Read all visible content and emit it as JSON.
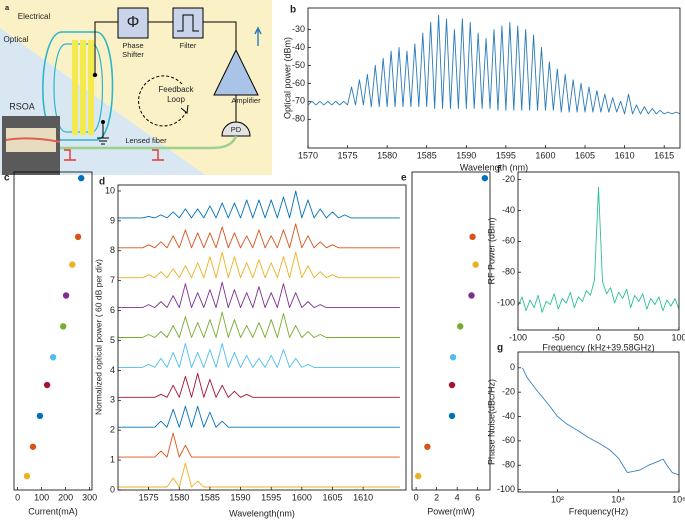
{
  "diagram": {
    "label": "a",
    "electrical": "Electrical",
    "optical": "Optical",
    "phase_symbol": "Φ",
    "phase_shifter": [
      "Phase",
      "Shifter"
    ],
    "filter": "Filter",
    "amplifier": "Amplifier",
    "pd": "PD",
    "feedback_loop": [
      "Feedback",
      "Loop"
    ],
    "rsoa": "RSOA",
    "lensed_fiber": "Lensed fiber"
  },
  "chart_data": [
    {
      "label": "b",
      "type": "line",
      "xlabel": "Wavelength (nm)",
      "ylabel": "Optical power (dBm)",
      "color": "#2a7ab9",
      "xlim": [
        1570,
        1617
      ],
      "ylim": [
        -96,
        -18
      ],
      "xticks": [
        1570,
        1575,
        1580,
        1585,
        1590,
        1595,
        1600,
        1605,
        1610,
        1615
      ],
      "yticks": [
        -80,
        -70,
        -60,
        -50,
        -40,
        -30
      ],
      "x": [
        1570,
        1570.5,
        1571,
        1571.5,
        1572,
        1572.5,
        1573,
        1573.5,
        1574,
        1574.5,
        1575,
        1575.5,
        1576,
        1576.5,
        1577,
        1577.5,
        1578,
        1578.5,
        1579,
        1579.5,
        1580,
        1580.5,
        1581,
        1581.5,
        1582,
        1582.5,
        1583,
        1583.5,
        1584,
        1584.5,
        1585,
        1585.5,
        1586,
        1586.5,
        1587,
        1587.5,
        1588,
        1588.5,
        1589,
        1589.5,
        1590,
        1590.5,
        1591,
        1591.5,
        1592,
        1592.5,
        1593,
        1593.5,
        1594,
        1594.5,
        1595,
        1595.5,
        1596,
        1596.5,
        1597,
        1597.5,
        1598,
        1598.5,
        1599,
        1599.5,
        1600,
        1600.5,
        1601,
        1601.5,
        1602,
        1602.5,
        1603,
        1603.5,
        1604,
        1604.5,
        1605,
        1605.5,
        1606,
        1606.5,
        1607,
        1607.5,
        1608,
        1608.5,
        1609,
        1609.5,
        1610,
        1610.5,
        1611,
        1611.5,
        1612,
        1612.5,
        1613,
        1613.5,
        1614,
        1614.5,
        1615,
        1615.5,
        1616,
        1616.5,
        1617
      ],
      "values": [
        -72,
        -70,
        -72,
        -70,
        -72,
        -70,
        -72,
        -70,
        -72,
        -70,
        -72,
        -62,
        -72,
        -58,
        -72,
        -55,
        -73,
        -50,
        -73,
        -46,
        -73,
        -42,
        -73,
        -40,
        -73,
        -42,
        -73,
        -38,
        -73,
        -32,
        -73,
        -26,
        -74,
        -22,
        -74,
        -24,
        -74,
        -30,
        -74,
        -24,
        -74,
        -26,
        -74,
        -32,
        -74,
        -35,
        -74,
        -30,
        -75,
        -28,
        -75,
        -26,
        -75,
        -28,
        -75,
        -30,
        -75,
        -33,
        -75,
        -40,
        -75,
        -48,
        -75,
        -52,
        -76,
        -55,
        -76,
        -58,
        -76,
        -60,
        -76,
        -62,
        -76,
        -64,
        -76,
        -66,
        -76,
        -68,
        -76,
        -70,
        -77,
        -66,
        -77,
        -72,
        -77,
        -73,
        -77,
        -74,
        -77,
        -75,
        -77,
        -76,
        -77,
        -76,
        -77
      ]
    },
    {
      "label": "c",
      "type": "scatter",
      "xlabel": "Current(mA)",
      "xlim": [
        -15,
        310
      ],
      "ylim": [
        0,
        10.3
      ],
      "xticks": [
        0,
        100,
        200,
        300
      ],
      "x": [
        39,
        64,
        93,
        123,
        148,
        190,
        202,
        228,
        252,
        265
      ],
      "y": [
        0.45,
        1.4,
        2.4,
        3.4,
        4.3,
        5.3,
        6.3,
        7.3,
        8.2,
        10.1
      ],
      "colors": [
        "#edb120",
        "#d95319",
        "#0072bd",
        "#a2142f",
        "#4dbeee",
        "#77ac30",
        "#7e2f8e",
        "#edb120",
        "#d95319",
        "#0072bd"
      ]
    },
    {
      "label": "d",
      "type": "line",
      "xlabel": "Wavelength(nm)",
      "ylabel": "Normalized optical power ( 60 dB per div)",
      "xlim": [
        1570,
        1617
      ],
      "ylim": [
        0,
        10.2
      ],
      "xticks": [
        1575,
        1580,
        1585,
        1590,
        1595,
        1600,
        1605,
        1610
      ],
      "yticks": [
        0,
        1,
        2,
        3,
        4,
        5,
        6,
        7,
        8,
        9,
        10
      ],
      "x": [
        1570,
        1571,
        1572,
        1573,
        1574,
        1575,
        1576,
        1577,
        1578,
        1579,
        1580,
        1581,
        1582,
        1583,
        1584,
        1585,
        1586,
        1587,
        1588,
        1589,
        1590,
        1591,
        1592,
        1593,
        1594,
        1595,
        1596,
        1597,
        1598,
        1599,
        1600,
        1601,
        1602,
        1603,
        1604,
        1605,
        1606,
        1607,
        1608,
        1609,
        1610,
        1611,
        1612,
        1613,
        1614,
        1615,
        1616
      ],
      "series": [
        {
          "color": "#edb120",
          "values": [
            0.1,
            0.1,
            0.1,
            0.1,
            0.1,
            0.1,
            0.1,
            0.1,
            0.1,
            0.4,
            0.1,
            0.9,
            0.1,
            0.3,
            0.1,
            0.1,
            0.1,
            0.1,
            0.1,
            0.1,
            0.1,
            0.1,
            0.1,
            0.1,
            0.1,
            0.1,
            0.1,
            0.1,
            0.1,
            0.1,
            0.1,
            0.1,
            0.1,
            0.1,
            0.1,
            0.1,
            0.1,
            0.1,
            0.1,
            0.1,
            0.1,
            0.1,
            0.1,
            0.1,
            0.1,
            0.1,
            0.1
          ]
        },
        {
          "color": "#d95319",
          "values": [
            1.1,
            1.1,
            1.1,
            1.1,
            1.1,
            1.1,
            1.1,
            1.3,
            1.1,
            1.9,
            1.1,
            1.5,
            1.1,
            1.1,
            1.1,
            1.1,
            1.1,
            1.1,
            1.1,
            1.1,
            1.1,
            1.1,
            1.1,
            1.1,
            1.1,
            1.1,
            1.1,
            1.1,
            1.1,
            1.1,
            1.1,
            1.1,
            1.1,
            1.1,
            1.1,
            1.1,
            1.1,
            1.1,
            1.1,
            1.1,
            1.1,
            1.1,
            1.1,
            1.1,
            1.1,
            1.1,
            1.1
          ]
        },
        {
          "color": "#0072bd",
          "values": [
            2.1,
            2.1,
            2.1,
            2.1,
            2.1,
            2.1,
            2.1,
            2.3,
            2.1,
            2.7,
            2.1,
            2.8,
            2.1,
            2.8,
            2.1,
            2.6,
            2.1,
            2.3,
            2.1,
            2.1,
            2.1,
            2.1,
            2.1,
            2.1,
            2.1,
            2.1,
            2.1,
            2.1,
            2.1,
            2.1,
            2.1,
            2.1,
            2.1,
            2.1,
            2.1,
            2.1,
            2.1,
            2.1,
            2.1,
            2.1,
            2.1,
            2.1,
            2.1,
            2.1,
            2.1,
            2.1,
            2.1
          ]
        },
        {
          "color": "#a2142f",
          "values": [
            3.1,
            3.1,
            3.1,
            3.1,
            3.1,
            3.1,
            3.1,
            3.2,
            3.1,
            3.5,
            3.1,
            3.8,
            3.1,
            3.9,
            3.1,
            3.7,
            3.1,
            3.5,
            3.1,
            3.3,
            3.1,
            3.2,
            3.1,
            3.1,
            3.1,
            3.1,
            3.1,
            3.1,
            3.1,
            3.1,
            3.1,
            3.1,
            3.1,
            3.1,
            3.1,
            3.1,
            3.1,
            3.1,
            3.1,
            3.1,
            3.1,
            3.1,
            3.1,
            3.1,
            3.1,
            3.1,
            3.1
          ]
        },
        {
          "color": "#4dbeee",
          "values": [
            4.1,
            4.1,
            4.1,
            4.1,
            4.1,
            4.2,
            4.1,
            4.4,
            4.1,
            4.6,
            4.1,
            4.9,
            4.1,
            4.6,
            4.1,
            4.7,
            4.1,
            4.9,
            4.1,
            4.6,
            4.1,
            4.5,
            4.1,
            4.4,
            4.1,
            4.5,
            4.1,
            4.7,
            4.1,
            4.4,
            4.1,
            4.2,
            4.1,
            4.1,
            4.1,
            4.1,
            4.1,
            4.1,
            4.1,
            4.1,
            4.1,
            4.1,
            4.1,
            4.1,
            4.1,
            4.1,
            4.1
          ]
        },
        {
          "color": "#77ac30",
          "values": [
            5.1,
            5.1,
            5.1,
            5.1,
            5.1,
            5.2,
            5.1,
            5.3,
            5.1,
            5.5,
            5.1,
            5.8,
            5.1,
            5.6,
            5.1,
            5.7,
            5.1,
            5.95,
            5.1,
            5.7,
            5.1,
            5.5,
            5.1,
            5.6,
            5.1,
            5.7,
            5.1,
            5.9,
            5.1,
            5.5,
            5.1,
            5.3,
            5.1,
            5.2,
            5.1,
            5.1,
            5.1,
            5.1,
            5.1,
            5.1,
            5.1,
            5.1,
            5.1,
            5.1,
            5.1,
            5.1,
            5.1
          ]
        },
        {
          "color": "#7e2f8e",
          "values": [
            6.1,
            6.1,
            6.1,
            6.1,
            6.1,
            6.2,
            6.1,
            6.3,
            6.1,
            6.5,
            6.1,
            6.9,
            6.1,
            6.6,
            6.1,
            6.7,
            6.1,
            6.95,
            6.1,
            6.7,
            6.1,
            6.6,
            6.1,
            6.8,
            6.1,
            6.6,
            6.1,
            6.9,
            6.1,
            6.6,
            6.1,
            6.3,
            6.1,
            6.2,
            6.1,
            6.1,
            6.1,
            6.1,
            6.1,
            6.1,
            6.1,
            6.1,
            6.1,
            6.1,
            6.1,
            6.1,
            6.1
          ]
        },
        {
          "color": "#edb120",
          "values": [
            7.1,
            7.1,
            7.1,
            7.1,
            7.1,
            7.2,
            7.1,
            7.3,
            7.1,
            7.4,
            7.1,
            7.5,
            7.1,
            7.6,
            7.1,
            7.8,
            7.1,
            7.95,
            7.1,
            7.8,
            7.1,
            7.6,
            7.1,
            7.7,
            7.1,
            7.6,
            7.1,
            7.8,
            7.1,
            7.95,
            7.1,
            7.5,
            7.1,
            7.3,
            7.1,
            7.2,
            7.1,
            7.1,
            7.1,
            7.1,
            7.1,
            7.1,
            7.1,
            7.1,
            7.1,
            7.1,
            7.1
          ]
        },
        {
          "color": "#d95319",
          "values": [
            8.1,
            8.1,
            8.1,
            8.1,
            8.1,
            8.2,
            8.1,
            8.3,
            8.1,
            8.5,
            8.1,
            8.7,
            8.1,
            8.6,
            8.1,
            8.6,
            8.1,
            8.8,
            8.1,
            8.6,
            8.1,
            8.5,
            8.1,
            8.7,
            8.1,
            8.5,
            8.1,
            8.7,
            8.1,
            8.9,
            8.1,
            8.5,
            8.1,
            8.3,
            8.1,
            8.2,
            8.1,
            8.1,
            8.1,
            8.1,
            8.1,
            8.1,
            8.1,
            8.1,
            8.1,
            8.1,
            8.1
          ]
        },
        {
          "color": "#0072bd",
          "values": [
            9.1,
            9.1,
            9.1,
            9.1,
            9.1,
            9.15,
            9.1,
            9.2,
            9.1,
            9.3,
            9.1,
            9.4,
            9.1,
            9.4,
            9.1,
            9.5,
            9.1,
            9.6,
            9.1,
            9.6,
            9.1,
            9.7,
            9.1,
            9.7,
            9.1,
            9.7,
            9.1,
            9.8,
            9.1,
            10,
            9.1,
            9.7,
            9.1,
            9.4,
            9.1,
            9.3,
            9.1,
            9.2,
            9.1,
            9.1,
            9.1,
            9.1,
            9.1,
            9.1,
            9.1,
            9.1,
            9.1
          ]
        }
      ]
    },
    {
      "label": "e",
      "type": "scatter",
      "xlabel": "Power(mW)",
      "xlim": [
        -0.4,
        7.2
      ],
      "ylim": [
        0,
        10.3
      ],
      "xticks": [
        0,
        2,
        4,
        6
      ],
      "x": [
        0.2,
        1.1,
        3.5,
        3.5,
        3.6,
        4.3,
        5.4,
        5.8,
        5.5,
        6.7
      ],
      "y": [
        0.45,
        1.4,
        2.4,
        3.4,
        4.3,
        5.3,
        6.3,
        7.3,
        8.2,
        10.1
      ],
      "colors": [
        "#edb120",
        "#d95319",
        "#0072bd",
        "#a2142f",
        "#4dbeee",
        "#77ac30",
        "#7e2f8e",
        "#edb120",
        "#d95319",
        "#0072bd"
      ]
    },
    {
      "label": "f",
      "type": "line",
      "xlabel": "Frequency (kHz+39.58GHz)",
      "ylabel": "RF Power (dBm)",
      "color": "#2dbf9a",
      "xlim": [
        -100,
        100
      ],
      "ylim": [
        -117.5,
        -15
      ],
      "xticks": [
        -100,
        -50,
        0,
        50,
        100
      ],
      "yticks": [
        -100,
        -80,
        -60,
        -40,
        -20
      ],
      "x": [
        -100,
        -95,
        -90,
        -85,
        -80,
        -75,
        -70,
        -65,
        -60,
        -55,
        -50,
        -45,
        -40,
        -35,
        -30,
        -25,
        -20,
        -15,
        -10,
        -5,
        0,
        5,
        10,
        15,
        20,
        25,
        30,
        35,
        40,
        45,
        50,
        55,
        60,
        65,
        70,
        75,
        80,
        85,
        90,
        95,
        100
      ],
      "values": [
        -102,
        -96,
        -105,
        -98,
        -103,
        -95,
        -106,
        -99,
        -101,
        -94,
        -104,
        -97,
        -100,
        -93,
        -103,
        -96,
        -99,
        -92,
        -95,
        -85,
        -25,
        -86,
        -94,
        -90,
        -100,
        -93,
        -97,
        -91,
        -103,
        -95,
        -99,
        -94,
        -104,
        -97,
        -101,
        -96,
        -105,
        -98,
        -102,
        -97,
        -104
      ]
    },
    {
      "label": "g",
      "type": "line",
      "xlog": true,
      "xlabel": "Frequency(Hz)",
      "ylabel": "Phase Noise(dBc/Hz)",
      "color": "#3a7fc1",
      "xlim": [
        5,
        1000000
      ],
      "ylim": [
        -102,
        13
      ],
      "xticks": [
        {
          "value": 100,
          "label": "10²"
        },
        {
          "value": 10000,
          "label": "10⁴"
        },
        {
          "value": 1000000,
          "label": "10⁶"
        }
      ],
      "yticks": [
        -100,
        -80,
        -60,
        -40,
        -20,
        0
      ],
      "x": [
        7,
        10,
        20,
        50,
        100,
        200,
        500,
        1000,
        2000,
        5000,
        10000,
        20000,
        50000,
        100000,
        200000,
        300000,
        400000,
        600000,
        1000000
      ],
      "values": [
        0,
        -8,
        -18,
        -30,
        -40,
        -46,
        -52,
        -57,
        -61,
        -67,
        -74,
        -86,
        -84,
        -80,
        -77,
        -75,
        -80,
        -86,
        -88
      ]
    }
  ]
}
